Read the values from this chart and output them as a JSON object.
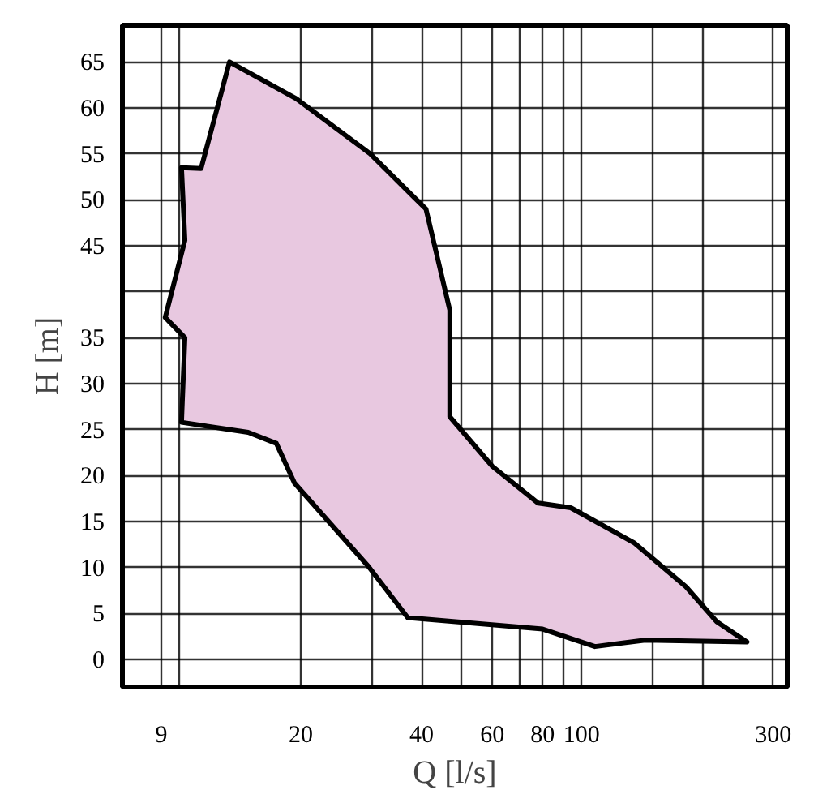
{
  "chart_data": {
    "type": "area",
    "xlabel": "Q [l/s]",
    "ylabel": "H [m]",
    "log": "x",
    "xlim": [
      7.2,
      325
    ],
    "ylim": [
      -3,
      69
    ],
    "xticks": [
      9,
      {
        "value": 10,
        "label": null
      },
      20,
      {
        "value": 30,
        "label": null
      },
      40,
      {
        "value": 50,
        "label": null
      },
      60,
      {
        "value": 70,
        "label": null
      },
      80,
      {
        "value": 90,
        "label": null
      },
      100,
      {
        "value": 150,
        "label": null
      },
      {
        "value": 200,
        "label": null
      },
      300
    ],
    "yticks": [
      0,
      5,
      10,
      15,
      20,
      25,
      30,
      35,
      {
        "value": 40,
        "label": null
      },
      45,
      50,
      55,
      60,
      65
    ],
    "grid": true,
    "line_style": "solid",
    "marker": "none",
    "series": [
      {
        "color": "#e8c8e0",
        "x": [
          13.3,
          19.5,
          29.8,
          41,
          47,
          47,
          60,
          78,
          94,
          135,
          182,
          217,
          258,
          144,
          108,
          80,
          38,
          37,
          29.5,
          19.3,
          17.4,
          14.8,
          10.1,
          10.3,
          9.2,
          10.3,
          10.1,
          11.3
        ],
        "values": [
          65,
          61,
          55,
          49,
          38,
          26.4,
          21,
          17,
          16.5,
          12.7,
          7.9,
          4.1,
          1.9,
          2.1,
          1.4,
          3.3,
          4.5,
          4.5,
          10.1,
          19.2,
          23.5,
          24.7,
          25.8,
          35,
          37.2,
          45.6,
          53.5,
          53.4
        ]
      }
    ]
  }
}
